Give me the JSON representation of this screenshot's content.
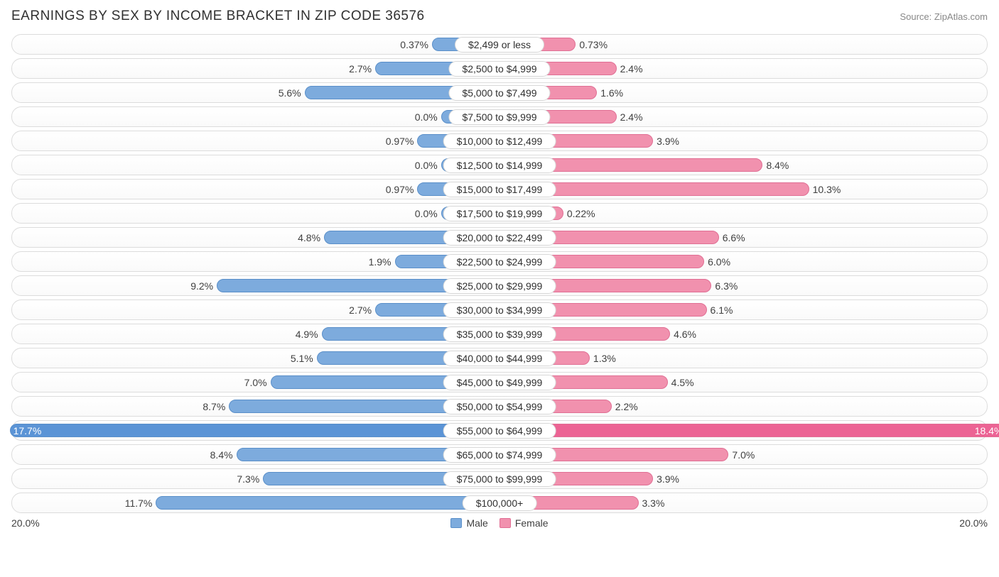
{
  "title": "EARNINGS BY SEX BY INCOME BRACKET IN ZIP CODE 36576",
  "source": "Source: ZipAtlas.com",
  "chart": {
    "type": "diverging-bar",
    "axis_max": 20.0,
    "axis_label_left": "20.0%",
    "axis_label_right": "20.0%",
    "male_color": "#7dabdd",
    "male_border": "#5a8fc9",
    "male_highlight": "#5b94d6",
    "female_color": "#f191ae",
    "female_border": "#e06f94",
    "female_highlight": "#ec6394",
    "track_border": "#dcdcdc",
    "track_bg": "#fafafa",
    "text_color": "#404040",
    "label_fontsize": 14,
    "title_fontsize": 19,
    "legend": {
      "male_label": "Male",
      "female_label": "Female"
    },
    "rows": [
      {
        "category": "$2,499 or less",
        "male": 0.37,
        "male_label": "0.37%",
        "female": 0.73,
        "female_label": "0.73%"
      },
      {
        "category": "$2,500 to $4,999",
        "male": 2.7,
        "male_label": "2.7%",
        "female": 2.4,
        "female_label": "2.4%"
      },
      {
        "category": "$5,000 to $7,499",
        "male": 5.6,
        "male_label": "5.6%",
        "female": 1.6,
        "female_label": "1.6%"
      },
      {
        "category": "$7,500 to $9,999",
        "male": 0.0,
        "male_label": "0.0%",
        "female": 2.4,
        "female_label": "2.4%"
      },
      {
        "category": "$10,000 to $12,499",
        "male": 0.97,
        "male_label": "0.97%",
        "female": 3.9,
        "female_label": "3.9%"
      },
      {
        "category": "$12,500 to $14,999",
        "male": 0.0,
        "male_label": "0.0%",
        "female": 8.4,
        "female_label": "8.4%"
      },
      {
        "category": "$15,000 to $17,499",
        "male": 0.97,
        "male_label": "0.97%",
        "female": 10.3,
        "female_label": "10.3%"
      },
      {
        "category": "$17,500 to $19,999",
        "male": 0.0,
        "male_label": "0.0%",
        "female": 0.22,
        "female_label": "0.22%"
      },
      {
        "category": "$20,000 to $22,499",
        "male": 4.8,
        "male_label": "4.8%",
        "female": 6.6,
        "female_label": "6.6%"
      },
      {
        "category": "$22,500 to $24,999",
        "male": 1.9,
        "male_label": "1.9%",
        "female": 6.0,
        "female_label": "6.0%"
      },
      {
        "category": "$25,000 to $29,999",
        "male": 9.2,
        "male_label": "9.2%",
        "female": 6.3,
        "female_label": "6.3%"
      },
      {
        "category": "$30,000 to $34,999",
        "male": 2.7,
        "male_label": "2.7%",
        "female": 6.1,
        "female_label": "6.1%"
      },
      {
        "category": "$35,000 to $39,999",
        "male": 4.9,
        "male_label": "4.9%",
        "female": 4.6,
        "female_label": "4.6%"
      },
      {
        "category": "$40,000 to $44,999",
        "male": 5.1,
        "male_label": "5.1%",
        "female": 1.3,
        "female_label": "1.3%"
      },
      {
        "category": "$45,000 to $49,999",
        "male": 7.0,
        "male_label": "7.0%",
        "female": 4.5,
        "female_label": "4.5%"
      },
      {
        "category": "$50,000 to $54,999",
        "male": 8.7,
        "male_label": "8.7%",
        "female": 2.2,
        "female_label": "2.2%"
      },
      {
        "category": "$55,000 to $64,999",
        "male": 17.7,
        "male_label": "17.7%",
        "female": 18.4,
        "female_label": "18.4%",
        "highlight": true
      },
      {
        "category": "$65,000 to $74,999",
        "male": 8.4,
        "male_label": "8.4%",
        "female": 7.0,
        "female_label": "7.0%"
      },
      {
        "category": "$75,000 to $99,999",
        "male": 7.3,
        "male_label": "7.3%",
        "female": 3.9,
        "female_label": "3.9%"
      },
      {
        "category": "$100,000+",
        "male": 11.7,
        "male_label": "11.7%",
        "female": 3.3,
        "female_label": "3.3%"
      }
    ]
  }
}
